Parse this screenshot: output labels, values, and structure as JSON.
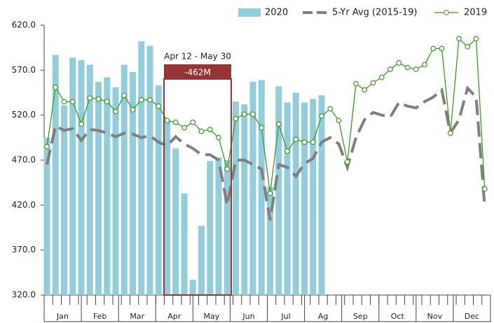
{
  "chart_data": {
    "type": "bar-line",
    "months": [
      "Jan",
      "Feb",
      "Mar",
      "Apr",
      "May",
      "Jun",
      "Jul",
      "Ag",
      "Sep",
      "Oct",
      "Nov",
      "Dec"
    ],
    "ylim": [
      320,
      620
    ],
    "yticks": [
      {
        "value": 320,
        "label": "320.0"
      },
      {
        "value": 370,
        "label": "370.0"
      },
      {
        "value": 420,
        "label": "420.0"
      },
      {
        "value": 470,
        "label": "470.0"
      },
      {
        "value": 520,
        "label": "520.0"
      },
      {
        "value": 570,
        "label": "570.0"
      },
      {
        "value": 620,
        "label": "620.0"
      }
    ],
    "grid": false,
    "legend": "top-right",
    "series": [
      {
        "name": "2020",
        "kind": "bar",
        "color": "#92cddc",
        "values": [
          495,
          587,
          531,
          584,
          581,
          576,
          557,
          562,
          551,
          576,
          568,
          602,
          597,
          553,
          514,
          483,
          433,
          337,
          397,
          469,
          473,
          470,
          535,
          532,
          557,
          559,
          440,
          552,
          534,
          545,
          534,
          538,
          542
        ]
      },
      {
        "name": "5-Yr Avg (2015-19)",
        "kind": "dash",
        "color": "#7f7f7f",
        "values": [
          465,
          508,
          503,
          505,
          492,
          504,
          503,
          500,
          496,
          500,
          499,
          495,
          497,
          490,
          486,
          496,
          488,
          483,
          476,
          476,
          470,
          420,
          470,
          470,
          465,
          460,
          403,
          465,
          462,
          452,
          466,
          472,
          490,
          495,
          488,
          462,
          495,
          515,
          523,
          520,
          518,
          534,
          530,
          528,
          535,
          540,
          548,
          500,
          515,
          550,
          540,
          418
        ]
      },
      {
        "name": "2019",
        "kind": "marker-line",
        "color": "#3a9a1f",
        "values": [
          485,
          551,
          535,
          535,
          510,
          539,
          538,
          535,
          524,
          542,
          526,
          537,
          537,
          530,
          514,
          512,
          506,
          512,
          502,
          504,
          495,
          460,
          516,
          521,
          521,
          506,
          433,
          510,
          480,
          493,
          490,
          490,
          519,
          527,
          514,
          468,
          555,
          548,
          556,
          562,
          571,
          578,
          573,
          571,
          576,
          594,
          594,
          500,
          605,
          596,
          605,
          438
        ]
      }
    ],
    "annotation": {
      "period": "Apr 12 - May 30",
      "delta": "-462M",
      "color": "#963634"
    }
  }
}
